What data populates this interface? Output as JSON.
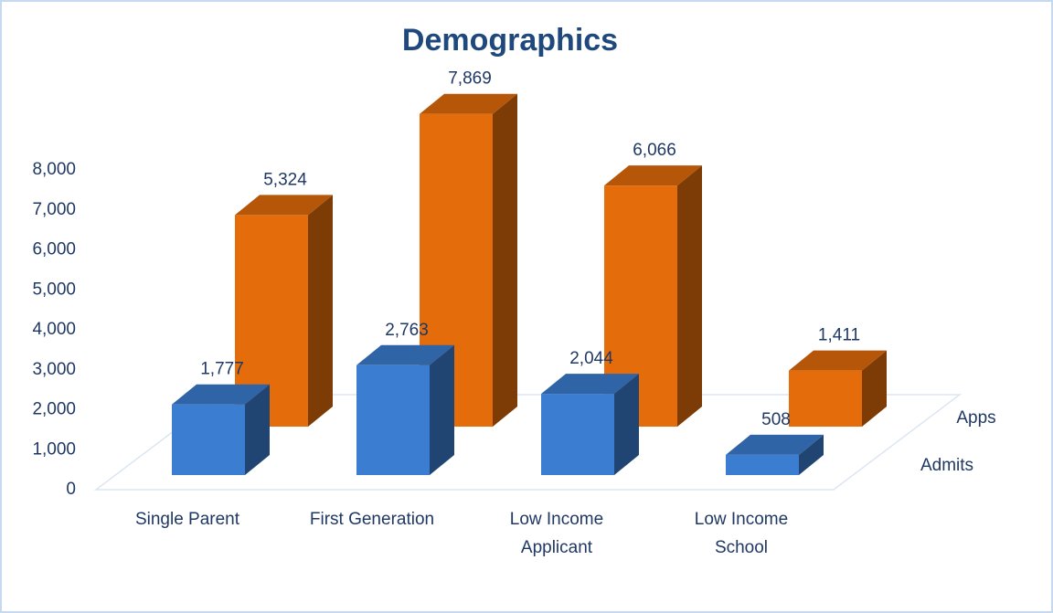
{
  "chart_data": {
    "type": "bar3d",
    "title": "Demographics",
    "categories": [
      "Single Parent",
      "First Generation",
      "Low Income Applicant",
      "Low Income School"
    ],
    "series": [
      {
        "name": "Admits",
        "color": "#3b7dd0",
        "values": [
          1777,
          2763,
          2044,
          508
        ],
        "value_labels": [
          "1,777",
          "2,763",
          "2,044",
          "508"
        ]
      },
      {
        "name": "Apps",
        "color": "#e46c0a",
        "values": [
          5324,
          7869,
          6066,
          1411
        ],
        "value_labels": [
          "5,324",
          "7,869",
          "6,066",
          "1,411"
        ]
      }
    ],
    "ylim": [
      0,
      8000
    ],
    "yticks": [
      0,
      {
        "value": 1000,
        "label": "1,000"
      },
      {
        "value": 2000,
        "label": "2,000"
      },
      {
        "value": 3000,
        "label": "3,000"
      },
      {
        "value": 4000,
        "label": "4,000"
      },
      {
        "value": 5000,
        "label": "5,000"
      },
      {
        "value": 6000,
        "label": "6,000"
      },
      {
        "value": 7000,
        "label": "7,000"
      },
      {
        "value": 8000,
        "label": "8,000"
      }
    ]
  }
}
